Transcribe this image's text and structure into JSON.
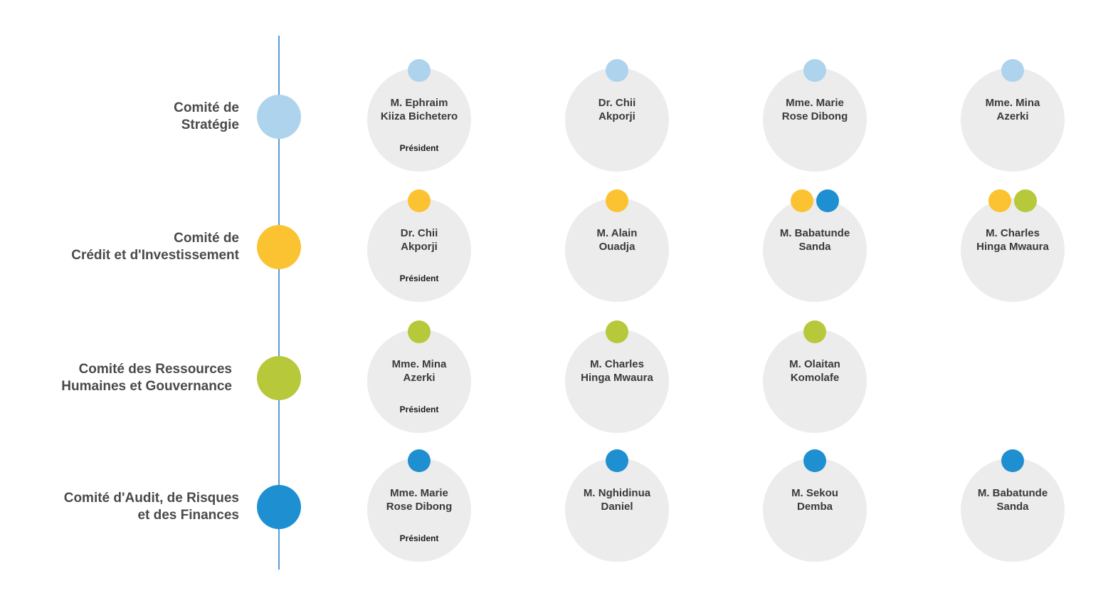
{
  "colors": {
    "strategie": "#aed3ec",
    "credit": "#fbc332",
    "rh": "#b7c83b",
    "audit": "#1e8fd0",
    "line": "#5b9bd5",
    "member_bg": "#ececec"
  },
  "committees": [
    {
      "label_lines": [
        "Comité de",
        "Stratégie"
      ],
      "color_key": "strategie",
      "members": [
        {
          "name_lines": [
            "M. Ephraim",
            "Kiiza Bichetero"
          ],
          "role": "Président",
          "dots": [
            "strategie"
          ]
        },
        {
          "name_lines": [
            "Dr. Chii",
            "Akporji"
          ],
          "role": "",
          "dots": [
            "strategie"
          ]
        },
        {
          "name_lines": [
            "Mme. Marie",
            "Rose Dibong"
          ],
          "role": "",
          "dots": [
            "strategie"
          ]
        },
        {
          "name_lines": [
            "Mme. Mina",
            "Azerki"
          ],
          "role": "",
          "dots": [
            "strategie"
          ]
        }
      ]
    },
    {
      "label_lines": [
        "Comité de",
        "Crédit et d'Investissement"
      ],
      "color_key": "credit",
      "members": [
        {
          "name_lines": [
            "Dr. Chii",
            "Akporji"
          ],
          "role": "Président",
          "dots": [
            "credit"
          ]
        },
        {
          "name_lines": [
            "M. Alain",
            "Ouadja"
          ],
          "role": "",
          "dots": [
            "credit"
          ]
        },
        {
          "name_lines": [
            "M. Babatunde",
            "Sanda"
          ],
          "role": "",
          "dots": [
            "credit",
            "audit"
          ]
        },
        {
          "name_lines": [
            "M. Charles",
            "Hinga Mwaura"
          ],
          "role": "",
          "dots": [
            "credit",
            "rh"
          ]
        }
      ]
    },
    {
      "label_lines": [
        "Comité des Ressources",
        "Humaines et Gouvernance"
      ],
      "color_key": "rh",
      "members": [
        {
          "name_lines": [
            "Mme. Mina",
            "Azerki"
          ],
          "role": "Président",
          "dots": [
            "rh"
          ]
        },
        {
          "name_lines": [
            "M. Charles",
            "Hinga Mwaura"
          ],
          "role": "",
          "dots": [
            "rh"
          ]
        },
        {
          "name_lines": [
            "M. Olaitan",
            "Komolafe"
          ],
          "role": "",
          "dots": [
            "rh"
          ]
        }
      ]
    },
    {
      "label_lines": [
        "Comité d'Audit, de Risques",
        "et des Finances"
      ],
      "color_key": "audit",
      "members": [
        {
          "name_lines": [
            "Mme. Marie",
            "Rose Dibong"
          ],
          "role": "Président",
          "dots": [
            "audit"
          ]
        },
        {
          "name_lines": [
            "M. Nghidinua",
            "Daniel"
          ],
          "role": "",
          "dots": [
            "audit"
          ]
        },
        {
          "name_lines": [
            "M. Sekou",
            "Demba"
          ],
          "role": "",
          "dots": [
            "audit"
          ]
        },
        {
          "name_lines": [
            "M. Babatunde",
            "Sanda"
          ],
          "role": "",
          "dots": [
            "audit"
          ]
        }
      ]
    }
  ]
}
